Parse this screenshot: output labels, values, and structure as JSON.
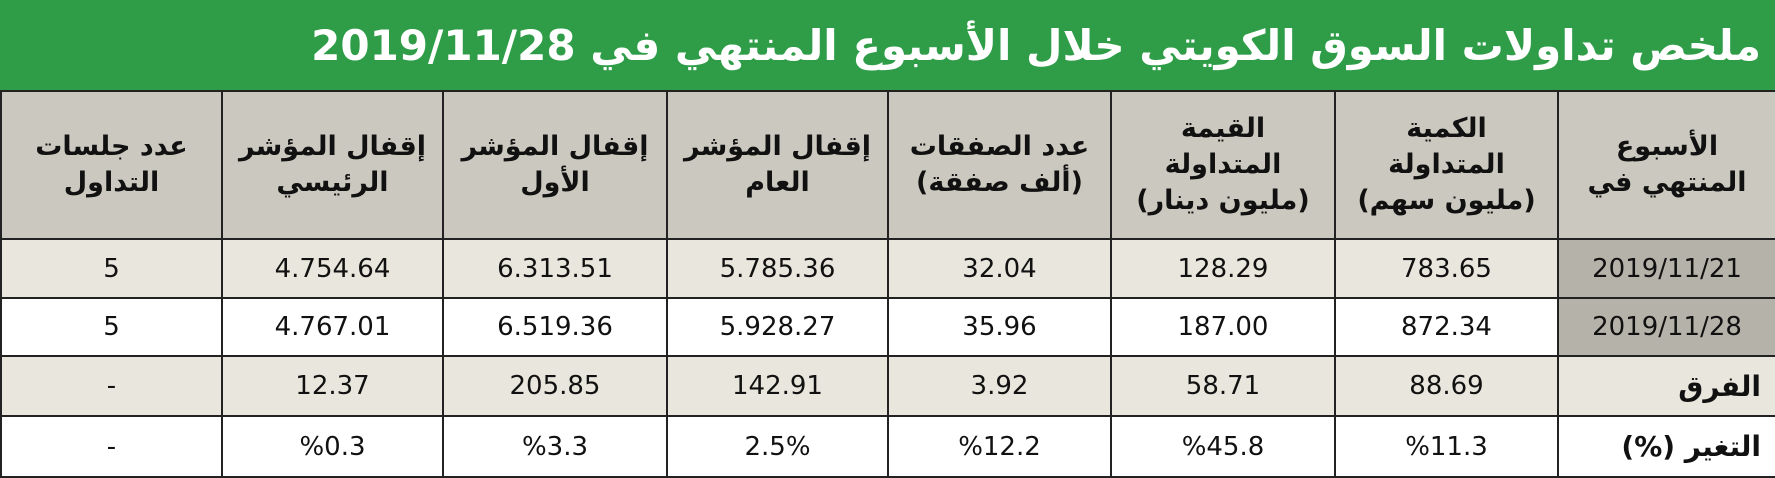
{
  "title": "ملخص تداولات السوق الكويتي خلال الأسبوع المنتهي في 2019/11/28",
  "table": {
    "header": [
      [
        "الأسبوع",
        "المنتهي في"
      ],
      [
        "الكمية",
        "المتداولة",
        "(مليون سهم)"
      ],
      [
        "القيمة",
        "المتداولة",
        "(مليون دينار)"
      ],
      [
        "عدد الصفقات",
        "(ألف صفقة)"
      ],
      [
        "إقفال المؤشر",
        "العام"
      ],
      [
        "إقفال المؤشر",
        "الأول"
      ],
      [
        "إقفال المؤشر",
        "الرئيسي"
      ],
      [
        "عدد جلسات",
        "التداول"
      ]
    ],
    "rows": [
      [
        "2019/11/21",
        "783.65",
        "128.29",
        "32.04",
        "5.785.36",
        "6.313.51",
        "4.754.64",
        "5"
      ],
      [
        "2019/11/28",
        "872.34",
        "187.00",
        "35.96",
        "5.928.27",
        "6.519.36",
        "4.767.01",
        "5"
      ],
      [
        "الفرق",
        "88.69",
        "58.71",
        "3.92",
        "142.91",
        "205.85",
        "12.37",
        "-"
      ],
      [
        "التغير (%)",
        "%11.3",
        "%45.8",
        "%12.2",
        "2.5%",
        "%3.3",
        "%0.3",
        "-"
      ]
    ]
  }
}
